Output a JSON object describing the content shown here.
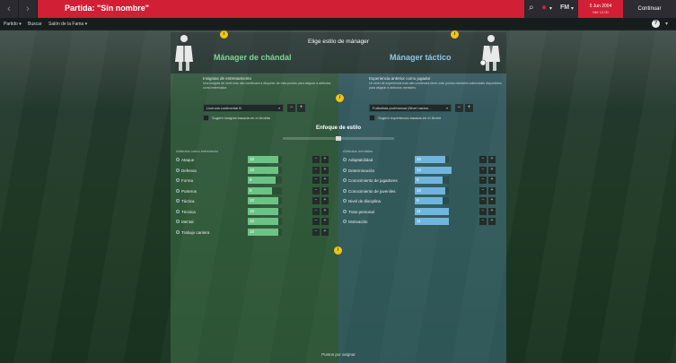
{
  "topbar": {
    "title": "Partida: \"Sin nombre\"",
    "date_line1": "5 Jun 2004",
    "date_line2": "Mié 12:00",
    "continue_label": "Continuar"
  },
  "subnav": {
    "items": [
      "Partido ▾",
      "Buscar",
      "Salón de la Fama ▾"
    ]
  },
  "heading": "Elige estilo de mánager",
  "left": {
    "style_name": "Mánager de chándal",
    "section_title": "Insignias de entrenamiento",
    "section_desc": "Una insignia de nivel más alto conllevará a disponer de más puntos para asignar a atributos como entrenador.",
    "dropdown_value": "Licencia continental B",
    "checkbox_label": "Sugerir insignia basada en el Ámbito",
    "attr_header": "Atributos como entrenador",
    "attributes": [
      {
        "name": "Ataque",
        "value": 10
      },
      {
        "name": "Defensa",
        "value": 10
      },
      {
        "name": "Forma",
        "value": 9
      },
      {
        "name": "Porteros",
        "value": 8
      },
      {
        "name": "Táctica",
        "value": 10
      },
      {
        "name": "Técnica",
        "value": 10
      },
      {
        "name": "Mental",
        "value": 10
      },
      {
        "name": "Trabajo cantera",
        "value": 10
      }
    ]
  },
  "right": {
    "style_name": "Mánager táctico",
    "section_title": "Experiencia anterior como jugador",
    "section_desc": "Un nivel de experiencia más alto conllevará tener más puntos mentales adicionales disponibles para asignar a atributos mentales.",
    "dropdown_value": "Futbolista profesional (Nivel nacion...",
    "checkbox_label": "Sugerir experiencia basada en el Ámbit",
    "attr_header": "Atributos mentales",
    "attributes": [
      {
        "name": "Adaptabilidad",
        "value": 10
      },
      {
        "name": "Determinación",
        "value": 12
      },
      {
        "name": "Conocimiento de jugadores",
        "value": 9
      },
      {
        "name": "Conocimiento de juveniles",
        "value": 10
      },
      {
        "name": "Nivel de disciplina",
        "value": 9
      },
      {
        "name": "Trato personal",
        "value": 11
      },
      {
        "name": "Motivación",
        "value": 11
      }
    ]
  },
  "focus_title": "Enfoque de estilo",
  "footer_text": "Puntos por asignar",
  "attr_max": 20,
  "colors": {
    "left_accent": "#7fd49a",
    "right_accent": "#8fc6e6",
    "left_bar": "#6cc386",
    "right_bar": "#6fb5de",
    "brand_red": "#d11f35"
  }
}
